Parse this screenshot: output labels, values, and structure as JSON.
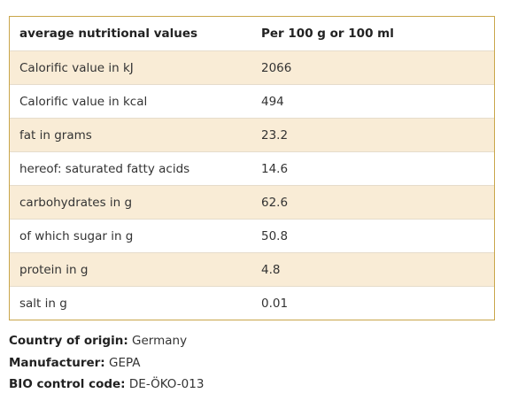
{
  "table": {
    "headers": [
      "average nutritional values",
      "Per 100 g or 100 ml"
    ],
    "rows": [
      [
        "Calorific value in kJ",
        "2066"
      ],
      [
        "Calorific value in kcal",
        "494"
      ],
      [
        "fat in grams",
        "23.2"
      ],
      [
        "hereof: saturated fatty acids",
        "14.6"
      ],
      [
        "carbohydrates in g",
        "62.6"
      ],
      [
        "of which sugar in g",
        "50.8"
      ],
      [
        "protein in g",
        "4.8"
      ],
      [
        "salt in g",
        "0.01"
      ]
    ]
  },
  "info": [
    {
      "label": "Country of origin:",
      "value": "Germany"
    },
    {
      "label": "Manufacturer:",
      "value": "GEPA"
    },
    {
      "label": "BIO control code:",
      "value": "DE-ÖKO-013"
    }
  ]
}
